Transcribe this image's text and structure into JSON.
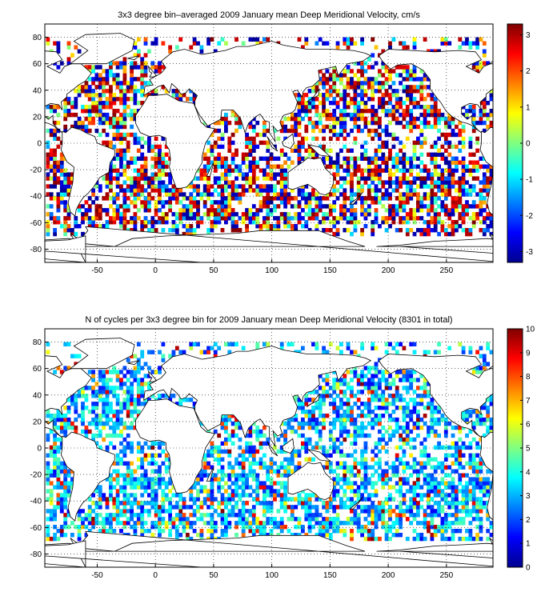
{
  "chart_data": [
    {
      "type": "heatmap",
      "title": "3x3 degree bin–averaged 2009 January mean Deep Meridional Velocity, cm/s",
      "xlabel": "",
      "ylabel": "",
      "xlim": [
        -95,
        290
      ],
      "ylim": [
        -90,
        90
      ],
      "x_ticks": [
        -50,
        0,
        50,
        100,
        150,
        200,
        250
      ],
      "y_ticks": [
        80,
        60,
        40,
        20,
        0,
        -20,
        -40,
        -60,
        -80
      ],
      "grid": true,
      "colorbar": {
        "min": -3.3,
        "max": 3.3,
        "ticks": [
          3,
          2,
          1,
          0,
          -1,
          -2,
          -3
        ],
        "colormap": "jet"
      },
      "seed": 7,
      "tail": 0.7,
      "bins": "3x3 degree bins over ocean regions; values span about -3.3 to 3.3 cm/s with many saturated extremes"
    },
    {
      "type": "heatmap",
      "title": "N of cycles per 3x3 degree bin for 2009 January mean Deep Meridional Velocity (8301 in total)",
      "xlabel": "",
      "ylabel": "",
      "xlim": [
        -95,
        290
      ],
      "ylim": [
        -90,
        90
      ],
      "x_ticks": [
        -50,
        0,
        50,
        100,
        150,
        200,
        250
      ],
      "y_ticks": [
        80,
        60,
        40,
        20,
        0,
        -20,
        -40,
        -60,
        -80
      ],
      "grid": true,
      "colorbar": {
        "min": 0,
        "max": 10,
        "ticks": [
          10,
          9,
          8,
          7,
          6,
          5,
          4,
          3,
          2,
          1,
          0
        ],
        "colormap": "jet"
      },
      "seed": 7,
      "tail": 0,
      "total": "8301",
      "bins": "3x3 degree bins over ocean regions; counts mostly 1-5 cycles, occasional bins up to 10"
    }
  ]
}
